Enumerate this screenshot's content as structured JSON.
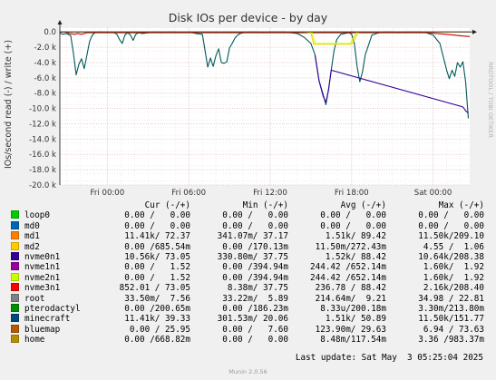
{
  "chart_data": {
    "type": "line",
    "title": "Disk IOs per device - by day",
    "ylabel": "IOs/second read (-) / write (+)",
    "watermark": "RRDTOOL / TOBI OETIKER",
    "ylim": [
      -20.0,
      0.5
    ],
    "yticks": [
      "0.0",
      "-2.0 k",
      "-4.0 k",
      "-6.0 k",
      "-8.0 k",
      "-10.0 k",
      "-12.0 k",
      "-14.0 k",
      "-16.0 k",
      "-18.0 k",
      "-20.0 k"
    ],
    "ytick_values": [
      0,
      -2,
      -4,
      -6,
      -8,
      -10,
      -12,
      -14,
      -16,
      -18,
      -20
    ],
    "xlim": [
      -3.5,
      26.7
    ],
    "xticks": [
      "Fri 00:00",
      "Fri 06:00",
      "Fri 12:00",
      "Fri 18:00",
      "Sat 00:00"
    ],
    "xtick_values": [
      0,
      6,
      12,
      18,
      24
    ],
    "grid": true,
    "series": [
      {
        "name": "minecraft",
        "color": "#005A5A",
        "x": [
          -3.5,
          -3.3,
          -3.0,
          -2.7,
          -2.5,
          -2.3,
          -2.1,
          -1.9,
          -1.7,
          -1.5,
          -1.3,
          -1.1,
          -0.9,
          -0.7,
          -0.5,
          0.0,
          0.4,
          0.7,
          0.9,
          1.1,
          1.3,
          1.5,
          1.7,
          1.9,
          2.1,
          2.3,
          2.6,
          3.0,
          3.5,
          4.0,
          4.5,
          5.0,
          5.5,
          6.0,
          6.5,
          7.0,
          7.2,
          7.4,
          7.6,
          7.8,
          8.0,
          8.2,
          8.4,
          8.6,
          8.8,
          9.0,
          9.2,
          9.4,
          9.6,
          9.8,
          10.0,
          10.5,
          11.0,
          11.5,
          12.0,
          12.5,
          13.0,
          13.5,
          14.0,
          14.5,
          15.0,
          15.3,
          15.6,
          15.9,
          16.1,
          16.3,
          16.5,
          16.7,
          16.9,
          17.2,
          17.5,
          17.8,
          18.0,
          18.2,
          18.4,
          18.6,
          18.8,
          19.0,
          19.5,
          20.0,
          20.5,
          21.0,
          21.5,
          22.0,
          22.5,
          23.0,
          23.5,
          24.0,
          24.5,
          25.0,
          25.2,
          25.4,
          25.6,
          25.8,
          26.0,
          26.2,
          26.4,
          26.6
        ],
        "values": [
          -0.1,
          -0.3,
          -0.2,
          -0.5,
          -2.8,
          -5.6,
          -4.2,
          -3.5,
          -4.8,
          -3.0,
          -1.2,
          -0.4,
          -0.1,
          0.0,
          0.0,
          -0.1,
          0.0,
          -0.3,
          -1.0,
          -1.5,
          -0.4,
          -0.1,
          -0.4,
          -1.1,
          -0.3,
          -0.1,
          -0.2,
          -0.1,
          0.0,
          -0.1,
          0.0,
          0.0,
          -0.1,
          0.0,
          -0.2,
          -0.3,
          -2.4,
          -4.6,
          -3.4,
          -4.5,
          -3.1,
          -2.2,
          -4.0,
          -4.1,
          -3.9,
          -2.1,
          -1.5,
          -0.8,
          -0.4,
          -0.2,
          -0.1,
          0.0,
          0.0,
          -0.1,
          0.0,
          0.0,
          0.0,
          -0.1,
          -0.2,
          -0.7,
          -1.5,
          -3.0,
          -6.4,
          -8.2,
          -9.5,
          -7.5,
          -5.0,
          -2.5,
          -1.0,
          -0.3,
          -0.2,
          -0.1,
          -0.3,
          -1.5,
          -4.5,
          -6.5,
          -5.2,
          -3.0,
          -0.4,
          -0.1,
          0.0,
          0.0,
          -0.1,
          0.0,
          0.0,
          0.0,
          -0.1,
          -0.4,
          -1.5,
          -5.0,
          -6.1,
          -5.0,
          -5.8,
          -4.0,
          -4.6,
          -3.9,
          -6.5,
          -11.3
        ]
      },
      {
        "name": "nvme0n1",
        "color": "#330099",
        "x": [
          15.3,
          15.6,
          15.9,
          16.1,
          16.3,
          16.5,
          26.2,
          26.4,
          26.6
        ],
        "values": [
          -3.0,
          -6.4,
          -8.4,
          -9.2,
          -7.6,
          -5.0,
          -9.8,
          -10.3,
          -10.6
        ]
      },
      {
        "name": "nvme3n1",
        "color": "#CC0000",
        "x": [
          -3.5,
          -3.1,
          -2.8,
          -2.4,
          -2.2,
          -1.9,
          -1.5,
          15.0,
          17.2,
          17.5,
          19.0,
          22.0,
          23.5,
          25.0,
          25.5,
          26.0,
          26.7
        ],
        "values": [
          0.0,
          0.0,
          -0.2,
          -0.3,
          -0.2,
          -0.3,
          -0.1,
          -0.1,
          -0.1,
          -0.1,
          -0.1,
          -0.1,
          -0.1,
          -0.3,
          -0.4,
          -0.5,
          -0.6
        ]
      },
      {
        "name": "pterodactyl",
        "color": "#FF9900",
        "x": [
          -3.5,
          26.7
        ],
        "values": [
          0.0,
          0.0
        ]
      },
      {
        "name": "md2",
        "color": "#FFCC00",
        "x": [
          14.5,
          15.0,
          15.2,
          18.0,
          18.2,
          18.5
        ],
        "values": [
          0.0,
          -0.1,
          -1.6,
          -1.6,
          -1.0,
          0.0
        ]
      },
      {
        "name": "nvme2n1",
        "color": "#CCFF00",
        "x": [
          14.8,
          15.1,
          15.3,
          17.9,
          18.1,
          18.4
        ],
        "values": [
          0.0,
          -0.1,
          -1.5,
          -1.5,
          -0.9,
          0.0
        ]
      }
    ]
  },
  "legend": {
    "headers": {
      "cur": "Cur (-/+)",
      "min": "Min (-/+)",
      "avg": "Avg (-/+)",
      "max": "Max (-/+)"
    },
    "rows": [
      {
        "name": "loop0",
        "color": "#00CC00",
        "cur": "0.00 /   0.00",
        "min": "0.00 /   0.00",
        "avg": "0.00 /   0.00",
        "max": "0.00 /   0.00"
      },
      {
        "name": "md0",
        "color": "#0066B3",
        "cur": "0.00 /   0.00",
        "min": "0.00 /   0.00",
        "avg": "0.00 /   0.00",
        "max": "0.00 /   0.00"
      },
      {
        "name": "md1",
        "color": "#FF8000",
        "cur": "11.41k/ 72.37",
        "min": "341.07m/ 37.17",
        "avg": "1.51k/ 89.42",
        "max": "11.50k/209.10"
      },
      {
        "name": "md2",
        "color": "#FFCC00",
        "cur": "0.00 /685.54m",
        "min": "0.00 /170.13m",
        "avg": "11.50m/272.43m",
        "max": "4.55 /  1.06"
      },
      {
        "name": "nvme0n1",
        "color": "#330099",
        "cur": "10.56k/ 73.05",
        "min": "330.80m/ 37.75",
        "avg": "1.52k/ 88.42",
        "max": "10.64k/208.38"
      },
      {
        "name": "nvme1n1",
        "color": "#990099",
        "cur": "0.00 /   1.52",
        "min": "0.00 /394.94m",
        "avg": "244.42 /652.14m",
        "max": "1.60k/  1.92"
      },
      {
        "name": "nvme2n1",
        "color": "#CCFF00",
        "cur": "0.00 /   1.52",
        "min": "0.00 /394.94m",
        "avg": "244.42 /652.14m",
        "max": "1.60k/  1.92"
      },
      {
        "name": "nvme3n1",
        "color": "#FF0000",
        "cur": "852.01 / 73.05",
        "min": "8.38m/ 37.75",
        "avg": "236.78 / 88.42",
        "max": "2.16k/208.40"
      },
      {
        "name": "root",
        "color": "#808080",
        "cur": "33.50m/  7.56",
        "min": "33.22m/  5.89",
        "avg": "214.64m/  9.21",
        "max": "34.98 / 22.81"
      },
      {
        "name": "pterodactyl",
        "color": "#008F00",
        "cur": "0.00 /200.65m",
        "min": "0.00 /186.23m",
        "avg": "8.33u/200.18m",
        "max": "3.30m/213.80m"
      },
      {
        "name": "minecraft",
        "color": "#00487D",
        "cur": "11.41k/ 39.33",
        "min": "301.53m/ 20.06",
        "avg": "1.51k/ 50.89",
        "max": "11.50k/151.77"
      },
      {
        "name": "bluemap",
        "color": "#B35A00",
        "cur": "0.00 / 25.95",
        "min": "0.00 /   7.60",
        "avg": "123.90m/ 29.63",
        "max": "6.94 / 73.63"
      },
      {
        "name": "home",
        "color": "#B38F00",
        "cur": "0.00 /668.82m",
        "min": "0.00 /   0.00",
        "avg": "8.48m/117.54m",
        "max": "3.36 /983.37m"
      }
    ]
  },
  "footer": {
    "last_update": "Last update: Sat May  3 05:25:04 2025",
    "munin": "Munin 2.0.56"
  }
}
